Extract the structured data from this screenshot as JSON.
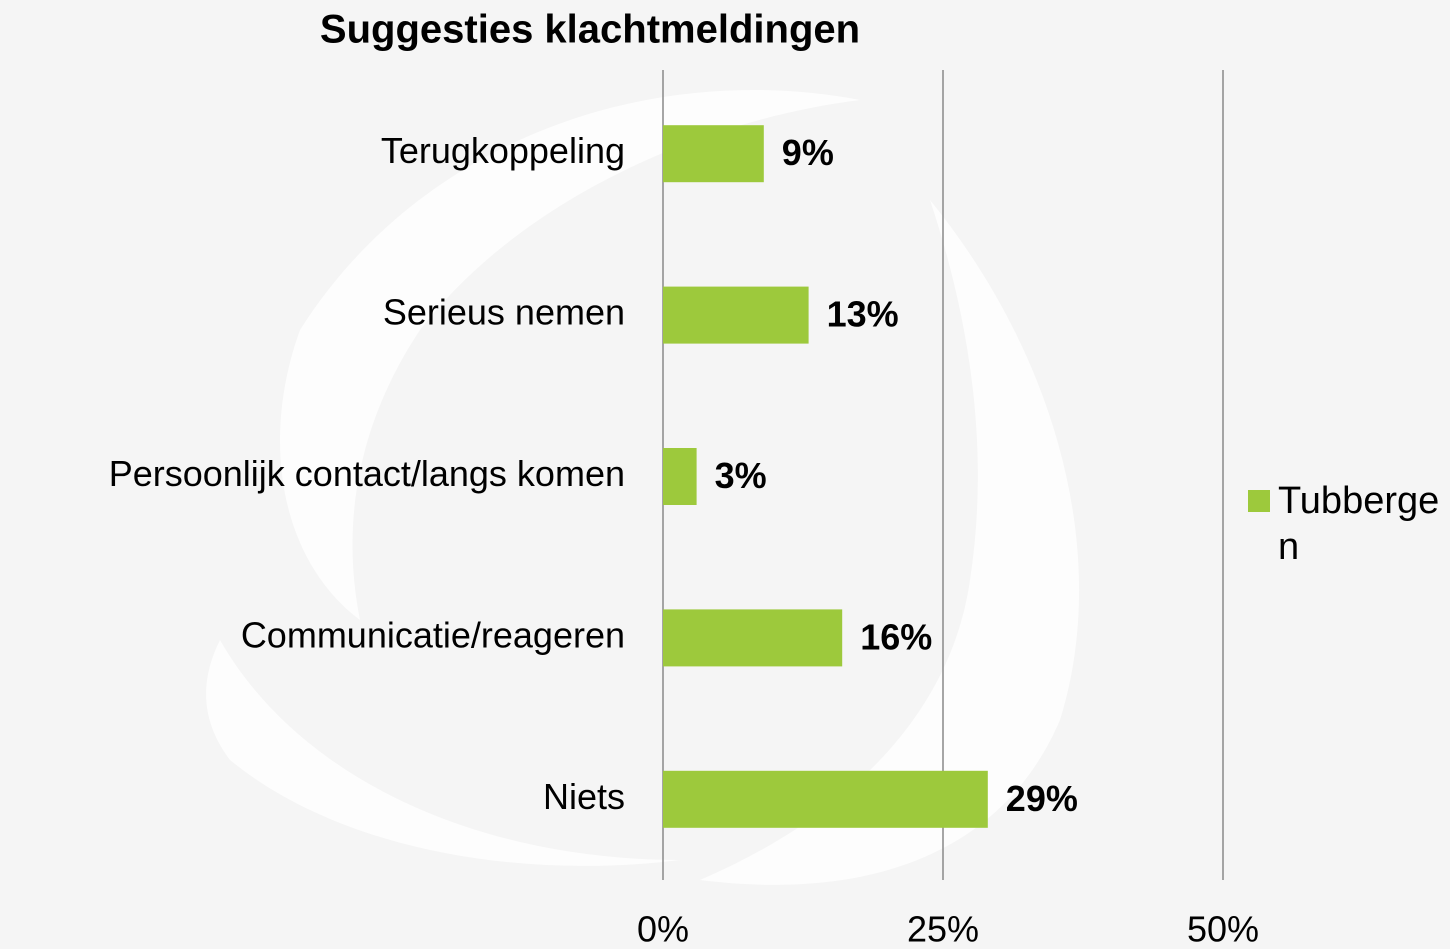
{
  "chart_data": {
    "type": "bar",
    "orientation": "horizontal",
    "title": "Suggesties klachtmeldingen",
    "categories": [
      "Terugkoppeling",
      "Serieus nemen",
      "Persoonlijk contact/langs komen",
      "Communicatie/reageren",
      "Niets"
    ],
    "series": [
      {
        "name": "Tubbergen",
        "color": "#9dc93c",
        "values": [
          9,
          13,
          3,
          16,
          29
        ],
        "value_labels": [
          "9%",
          "13%",
          "3%",
          "16%",
          "29%"
        ]
      }
    ],
    "xlim": [
      0,
      50
    ],
    "xticks": [
      {
        "value": 0,
        "label": "0%"
      },
      {
        "value": 25,
        "label": "25%"
      },
      {
        "value": 50,
        "label": "50%"
      }
    ],
    "grid": true,
    "legend": "right"
  }
}
